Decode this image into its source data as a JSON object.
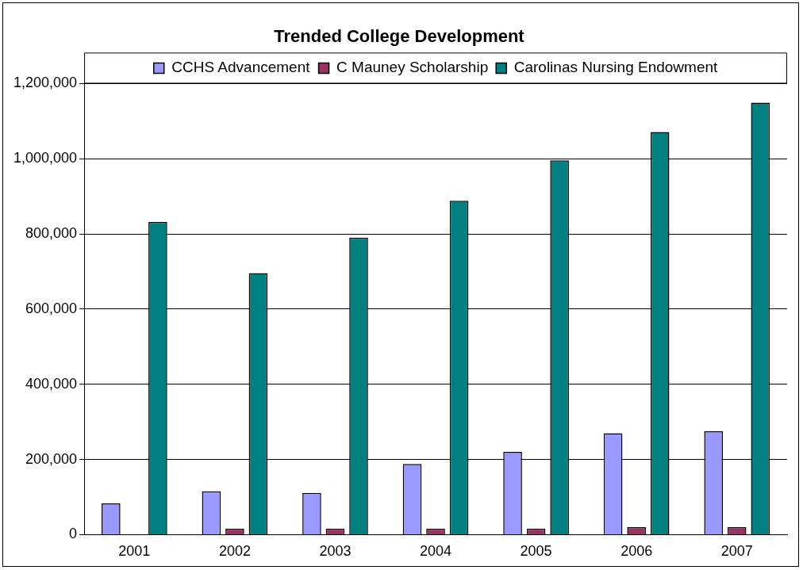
{
  "chart_data": {
    "type": "bar",
    "title": "Trended College Development",
    "categories": [
      "2001",
      "2002",
      "2003",
      "2004",
      "2005",
      "2006",
      "2007"
    ],
    "series": [
      {
        "name": "CCHS Advancement",
        "color": "#9999ff",
        "values": [
          83000,
          115000,
          111000,
          188000,
          220000,
          270000,
          275000
        ]
      },
      {
        "name": "C Mauney Scholarship",
        "color": "#993366",
        "values": [
          0,
          16000,
          16000,
          16000,
          16000,
          20000,
          20000
        ]
      },
      {
        "name": "Carolinas Nursing Endowment",
        "color": "#008080",
        "values": [
          832000,
          696000,
          790000,
          888000,
          996000,
          1071000,
          1149000
        ]
      }
    ],
    "ylim": [
      0,
      1200000
    ],
    "yticks": [
      {
        "value": 0,
        "label": "0"
      },
      {
        "value": 200000,
        "label": "200,000"
      },
      {
        "value": 400000,
        "label": "400,000"
      },
      {
        "value": 600000,
        "label": "600,000"
      },
      {
        "value": 800000,
        "label": "800,000"
      },
      {
        "value": 1000000,
        "label": "1,000,000"
      },
      {
        "value": 1200000,
        "label": "1,200,000"
      }
    ],
    "grid": "y",
    "legend": "top"
  }
}
